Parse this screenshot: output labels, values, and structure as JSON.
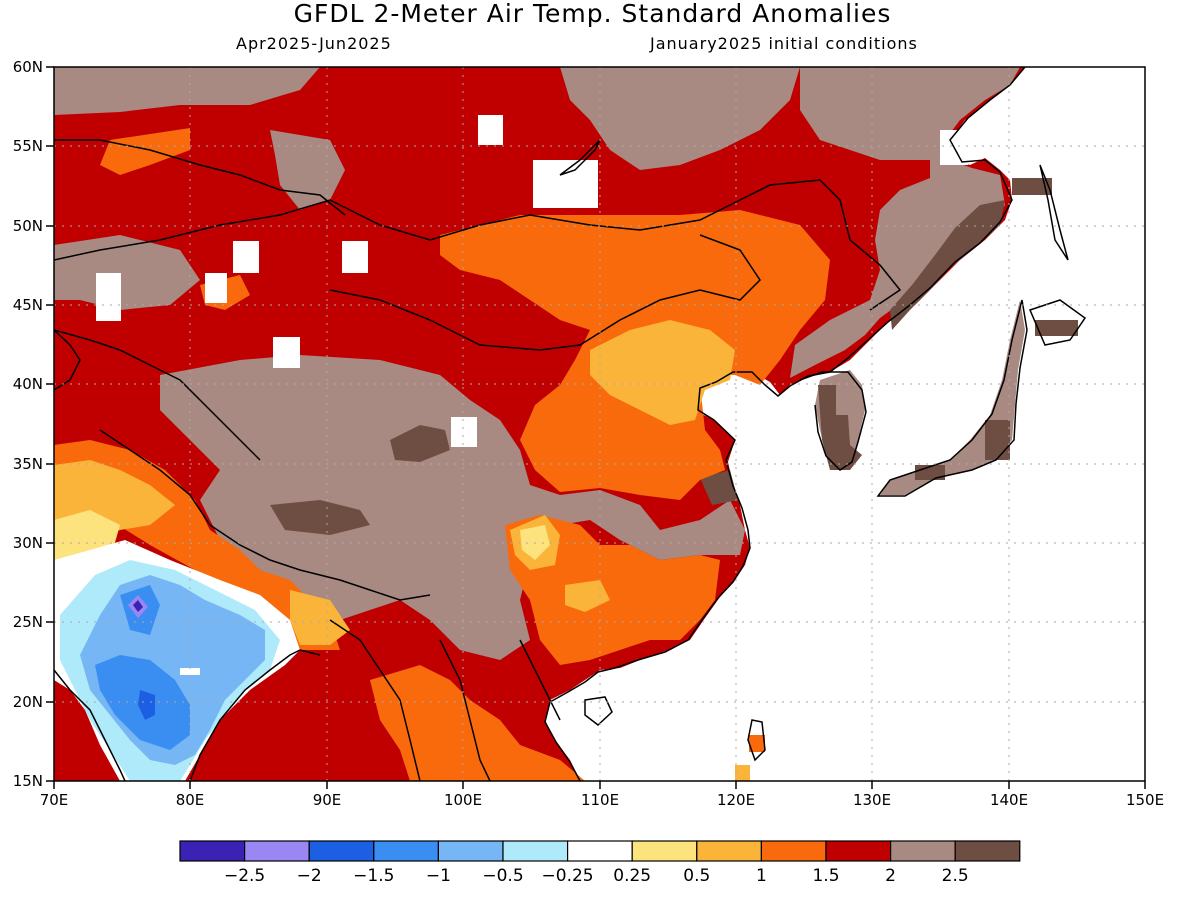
{
  "title": "GFDL 2-Meter Air Temp. Standard Anomalies",
  "subtitle_left": "Apr2025-Jun2025",
  "subtitle_right": "January2025 initial conditions",
  "lat_labels": [
    "15N",
    "20N",
    "25N",
    "30N",
    "35N",
    "40N",
    "45N",
    "50N",
    "55N",
    "60N"
  ],
  "lon_labels": [
    "70E",
    "80E",
    "90E",
    "100E",
    "110E",
    "120E",
    "130E",
    "140E",
    "150E"
  ],
  "colorbar": {
    "labels": [
      "-2.5",
      "-2",
      "-1.5",
      "-1",
      "-0.5",
      "-0.25",
      "0.25",
      "0.5",
      "1",
      "1.5",
      "2",
      "2.5"
    ],
    "colors": [
      "#3b22b5",
      "#9a87f3",
      "#1c5fe3",
      "#3a8ef2",
      "#77b6f5",
      "#aeeaf9",
      "#ffffff",
      "#fde37e",
      "#fbb43a",
      "#f96a0c",
      "#c00000",
      "#a88a82",
      "#6e4e42"
    ]
  },
  "colors": {
    "land_default": "#c00000",
    "ocean": "#ffffff",
    "coast": "#000000"
  }
}
